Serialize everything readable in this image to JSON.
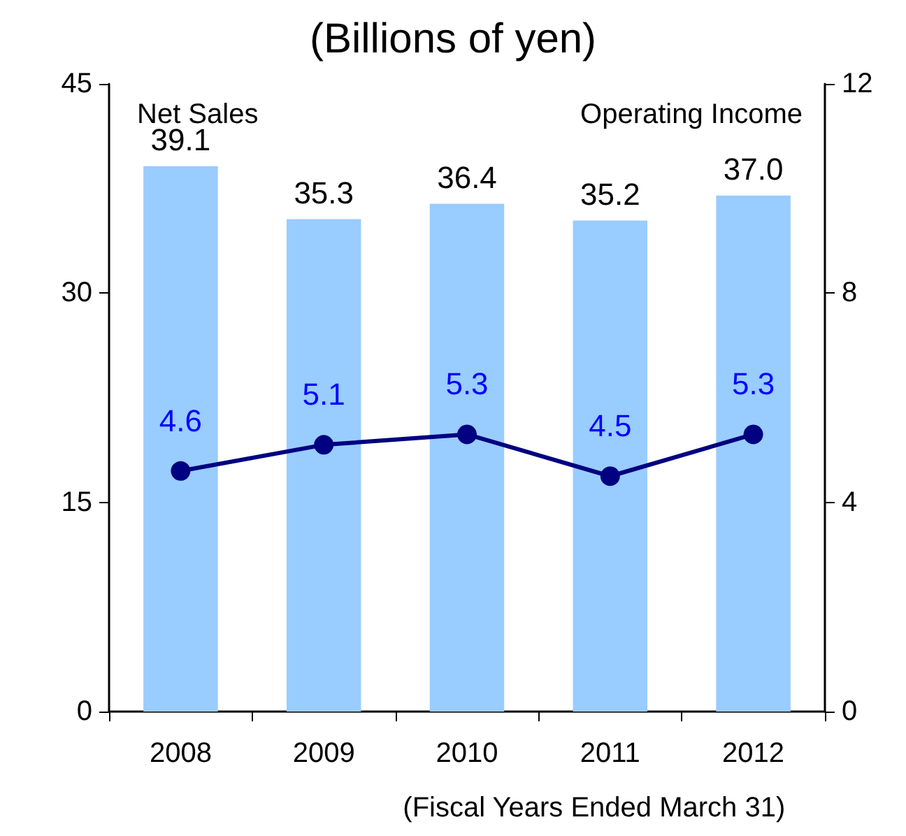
{
  "chart_data": {
    "type": "bar",
    "title": "(Billions of yen)",
    "ylabel": "Net Sales",
    "y2label": "Operating Income",
    "xlabel": "(Fiscal Years Ended March 31)",
    "categories": [
      "2008",
      "2009",
      "2010",
      "2011",
      "2012"
    ],
    "series": [
      {
        "color": "#99ccff",
        "values": [
          39.1,
          35.3,
          36.4,
          35.2,
          37.0
        ],
        "value_labels": [
          "39.1",
          "35.3",
          "36.4",
          "35.2",
          "37.0"
        ]
      },
      {
        "type": "line",
        "axis": "y2",
        "color": "#000080",
        "values": [
          4.6,
          5.1,
          5.3,
          4.5,
          5.3
        ],
        "value_labels": [
          "4.6",
          "5.1",
          "5.3",
          "4.5",
          "5.3"
        ]
      }
    ],
    "ylim": [
      0,
      45
    ],
    "yticks": [
      0,
      15,
      30,
      45
    ],
    "y2lim": [
      0,
      12
    ],
    "y2ticks": [
      0,
      4,
      8,
      12
    ],
    "grid": false,
    "marker": "circle",
    "line_style": "solid"
  }
}
